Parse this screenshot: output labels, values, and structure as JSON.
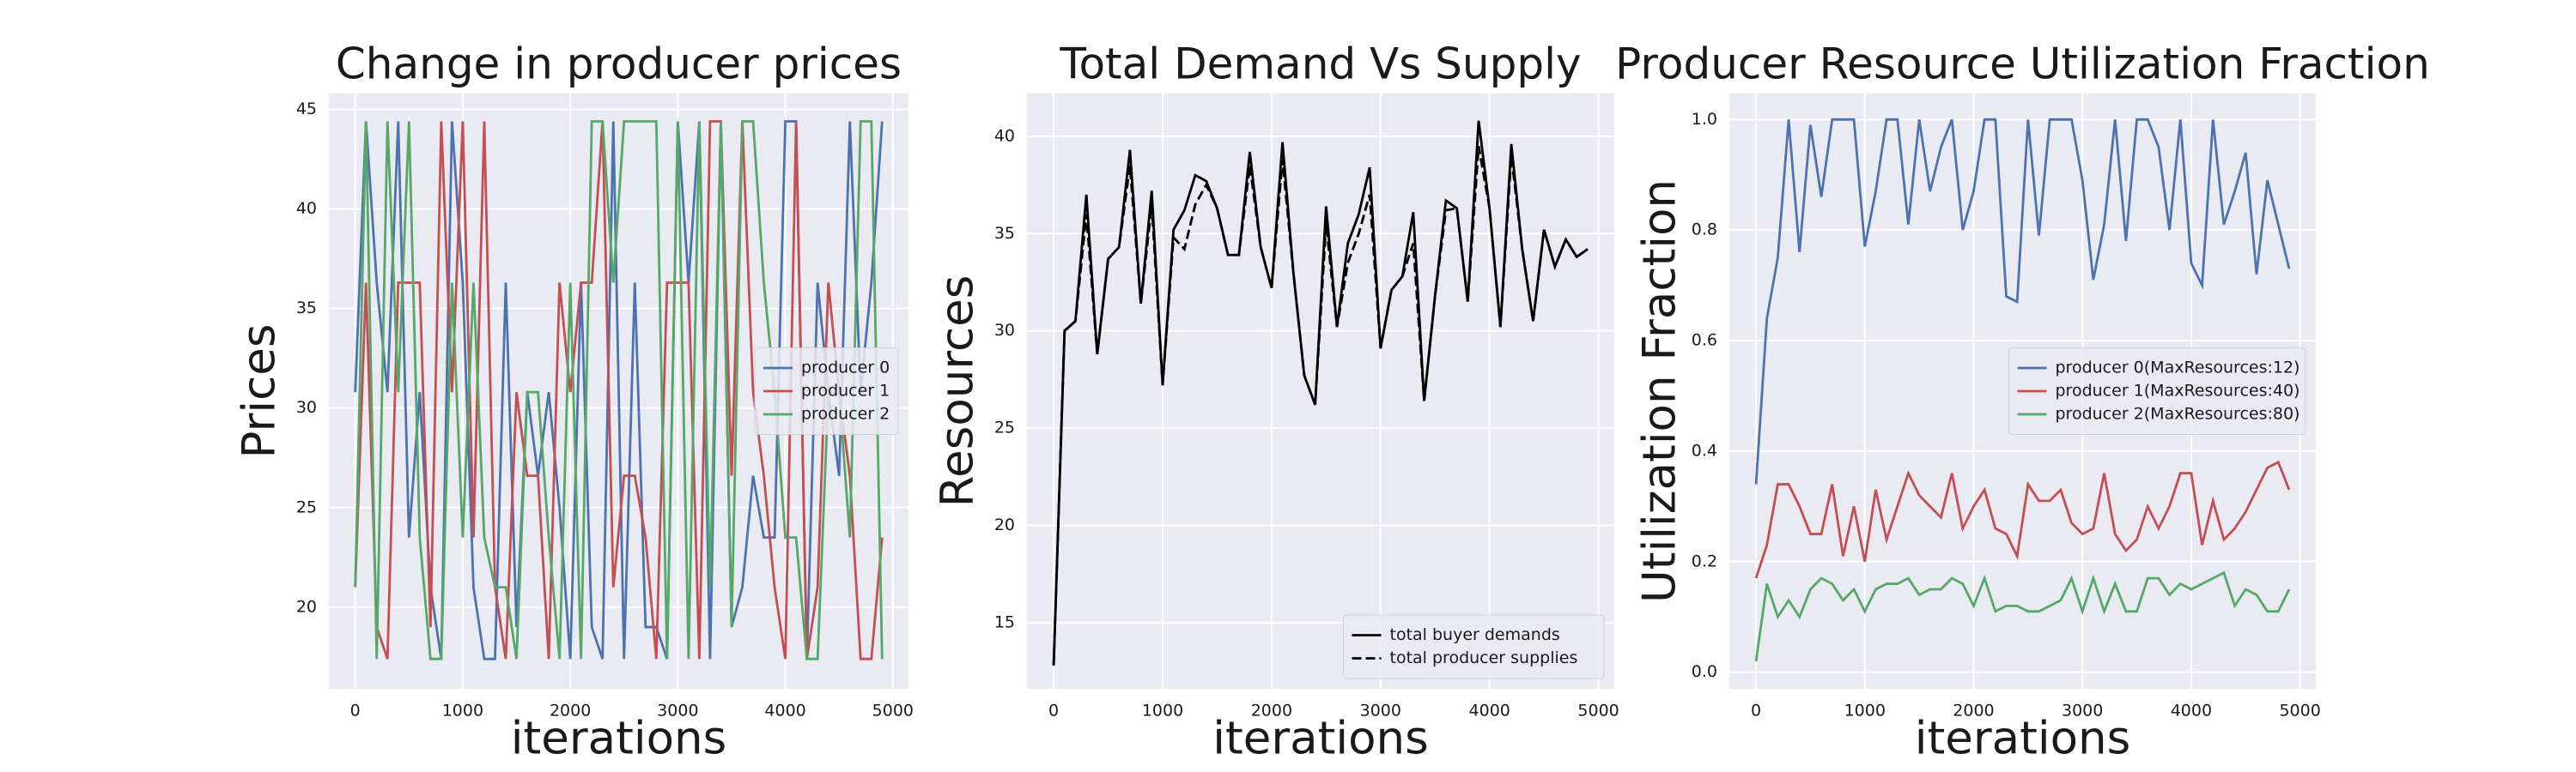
{
  "chart_data": [
    {
      "type": "line",
      "title": "Change in producer prices",
      "xlabel": "iterations",
      "ylabel": "Prices",
      "x": [
        0,
        100,
        200,
        300,
        400,
        500,
        600,
        700,
        800,
        900,
        1000,
        1100,
        1200,
        1300,
        1400,
        1500,
        1600,
        1700,
        1800,
        1900,
        2000,
        2100,
        2200,
        2300,
        2400,
        2500,
        2600,
        2700,
        2800,
        2900,
        3000,
        3100,
        3200,
        3300,
        3400,
        3500,
        3600,
        3700,
        3800,
        3900,
        4000,
        4100,
        4200,
        4300,
        4400,
        4500,
        4600,
        4700,
        4800,
        4900
      ],
      "xlim": [
        -245,
        5145
      ],
      "ylim": [
        15.9,
        45.8
      ],
      "xticks": [
        0,
        1000,
        2000,
        3000,
        4000,
        5000
      ],
      "yticks": [
        20,
        25,
        30,
        35,
        40,
        45
      ],
      "grid": true,
      "legend": "center right",
      "series": [
        {
          "name": "producer 0",
          "color": "#4c72b0",
          "values": [
            30.8,
            44.4,
            36.3,
            30.8,
            44.4,
            23.5,
            30.8,
            21,
            17.4,
            44.4,
            36.3,
            21,
            17.4,
            17.4,
            36.3,
            19,
            30.8,
            26.6,
            30.8,
            25,
            17.4,
            36.3,
            19,
            17.4,
            44.4,
            17.4,
            36.3,
            19,
            19,
            17.4,
            44.4,
            36.3,
            44.4,
            17.4,
            44.4,
            19,
            21,
            26.6,
            23.5,
            23.5,
            44.4,
            44.4,
            17.4,
            36.3,
            30.8,
            26.6,
            44.4,
            30.8,
            36.3,
            44.4
          ]
        },
        {
          "name": "producer 1",
          "color": "#c44e52",
          "values": [
            21,
            36.3,
            19,
            17.4,
            36.3,
            36.3,
            36.3,
            19,
            44.4,
            30.8,
            44.4,
            23.5,
            44.4,
            21,
            17.4,
            30.8,
            26.6,
            26.6,
            17.4,
            36.3,
            30.8,
            36.3,
            36.3,
            44.4,
            21,
            26.6,
            26.6,
            23.5,
            17.4,
            36.3,
            36.3,
            36.3,
            17.4,
            44.4,
            44.4,
            26.6,
            44.4,
            30.8,
            26.6,
            21,
            17.4,
            44.4,
            17.4,
            21,
            36.3,
            30.8,
            26.6,
            17.4,
            17.4,
            23.5
          ]
        },
        {
          "name": "producer 2",
          "color": "#55a868",
          "values": [
            21,
            44.4,
            17.4,
            44.4,
            30.8,
            44.4,
            23.5,
            17.4,
            17.4,
            36.3,
            23.5,
            36.3,
            23.5,
            21,
            21,
            17.4,
            30.8,
            30.8,
            23.5,
            17.4,
            36.3,
            17.4,
            44.4,
            44.4,
            36.3,
            44.4,
            44.4,
            44.4,
            44.4,
            17.4,
            44.4,
            17.4,
            44.4,
            21,
            44.4,
            19,
            44.4,
            44.4,
            36.3,
            30.8,
            23.5,
            23.5,
            17.4,
            17.4,
            30.8,
            30.8,
            23.5,
            44.4,
            44.4,
            17.4
          ]
        }
      ]
    },
    {
      "type": "line",
      "title": "Total Demand Vs Supply",
      "xlabel": "iterations",
      "ylabel": "Resources",
      "x": [
        0,
        100,
        200,
        300,
        400,
        500,
        600,
        700,
        800,
        900,
        1000,
        1100,
        1200,
        1300,
        1400,
        1500,
        1600,
        1700,
        1800,
        1900,
        2000,
        2100,
        2200,
        2300,
        2400,
        2500,
        2600,
        2700,
        2800,
        2900,
        3000,
        3100,
        3200,
        3300,
        3400,
        3500,
        3600,
        3700,
        3800,
        3900,
        4000,
        4100,
        4200,
        4300,
        4400,
        4500,
        4600,
        4700,
        4800,
        4900
      ],
      "xlim": [
        -245,
        5145
      ],
      "ylim": [
        11.6,
        42.2
      ],
      "xticks": [
        0,
        1000,
        2000,
        3000,
        4000,
        5000
      ],
      "yticks": [
        15,
        20,
        25,
        30,
        35,
        40
      ],
      "grid": true,
      "legend": "lower right",
      "series": [
        {
          "name": "total buyer demands",
          "color": "#000000",
          "linestyle": "solid",
          "values": [
            12.8,
            30,
            30.5,
            37,
            28.8,
            33.7,
            34.3,
            39.3,
            31.4,
            37.2,
            27.2,
            35.2,
            36.2,
            38,
            37.7,
            36.3,
            33.9,
            33.9,
            39.2,
            34.3,
            32.2,
            39.7,
            33,
            27.7,
            26.2,
            36.4,
            30.2,
            34.5,
            36,
            38.4,
            29.1,
            32.1,
            32.8,
            36.1,
            26.4,
            31.8,
            36.7,
            36.3,
            31.5,
            40.8,
            36.3,
            30.2,
            39.6,
            34.2,
            30.5,
            35.2,
            33.3,
            34.7,
            33.8,
            34.2
          ]
        },
        {
          "name": "total producer supplies",
          "color": "#000000",
          "linestyle": "dashed",
          "values": [
            12.8,
            30,
            30.5,
            36,
            28.8,
            33.7,
            34.3,
            38.5,
            31.4,
            36.5,
            27.2,
            34.8,
            34.2,
            36.5,
            37.5,
            36.3,
            33.9,
            33.9,
            38.5,
            34.3,
            32.2,
            38.8,
            33,
            27.7,
            26.2,
            35.5,
            30.2,
            33.5,
            35,
            37,
            29.1,
            32.1,
            32.8,
            34.5,
            26.4,
            31.8,
            36.2,
            36.3,
            31.5,
            39.5,
            36.3,
            30.2,
            39,
            34.2,
            30.5,
            35.2,
            33.3,
            34.7,
            33.8,
            34.2
          ]
        }
      ]
    },
    {
      "type": "line",
      "title": "Producer Resource Utilization Fraction",
      "xlabel": "iterations",
      "ylabel": "Utilization Fraction",
      "x": [
        0,
        100,
        200,
        300,
        400,
        500,
        600,
        700,
        800,
        900,
        1000,
        1100,
        1200,
        1300,
        1400,
        1500,
        1600,
        1700,
        1800,
        1900,
        2000,
        2100,
        2200,
        2300,
        2400,
        2500,
        2600,
        2700,
        2800,
        2900,
        3000,
        3100,
        3200,
        3300,
        3400,
        3500,
        3600,
        3700,
        3800,
        3900,
        4000,
        4100,
        4200,
        4300,
        4400,
        4500,
        4600,
        4700,
        4800,
        4900
      ],
      "xlim": [
        -245,
        5145
      ],
      "ylim": [
        -0.03,
        1.047
      ],
      "xticks": [
        0,
        1000,
        2000,
        3000,
        4000,
        5000
      ],
      "yticks": [
        {
          "value": 0,
          "label": "0.0"
        },
        0.2,
        0.4,
        0.6,
        0.8,
        {
          "value": 1,
          "label": "1.0"
        }
      ],
      "grid": true,
      "legend": "center right",
      "series": [
        {
          "name": "producer 0(MaxResources:12)",
          "color": "#4c72b0",
          "values": [
            0.34,
            0.64,
            0.75,
            1.0,
            0.76,
            0.99,
            0.86,
            1.0,
            1.0,
            1.0,
            0.77,
            0.87,
            1.0,
            1.0,
            0.81,
            1.0,
            0.87,
            0.95,
            1.0,
            0.8,
            0.87,
            1.0,
            1.0,
            0.68,
            0.67,
            1.0,
            0.79,
            1.0,
            1.0,
            1.0,
            0.89,
            0.71,
            0.81,
            1.0,
            0.78,
            1.0,
            1.0,
            0.95,
            0.8,
            1.0,
            0.74,
            0.7,
            1.0,
            0.81,
            0.87,
            0.94,
            0.72,
            0.89,
            0.81,
            0.73
          ]
        },
        {
          "name": "producer 1(MaxResources:40)",
          "color": "#c44e52",
          "values": [
            0.17,
            0.23,
            0.34,
            0.34,
            0.3,
            0.25,
            0.25,
            0.34,
            0.21,
            0.3,
            0.2,
            0.33,
            0.24,
            0.3,
            0.36,
            0.32,
            0.3,
            0.28,
            0.36,
            0.26,
            0.3,
            0.33,
            0.26,
            0.25,
            0.21,
            0.34,
            0.31,
            0.31,
            0.33,
            0.27,
            0.25,
            0.26,
            0.36,
            0.25,
            0.22,
            0.24,
            0.3,
            0.26,
            0.3,
            0.36,
            0.36,
            0.23,
            0.31,
            0.24,
            0.26,
            0.29,
            0.33,
            0.37,
            0.38,
            0.33
          ]
        },
        {
          "name": "producer 2(MaxResources:80)",
          "color": "#55a868",
          "values": [
            0.02,
            0.16,
            0.1,
            0.13,
            0.1,
            0.15,
            0.17,
            0.16,
            0.13,
            0.15,
            0.11,
            0.15,
            0.16,
            0.16,
            0.17,
            0.14,
            0.15,
            0.15,
            0.17,
            0.16,
            0.12,
            0.17,
            0.11,
            0.12,
            0.12,
            0.11,
            0.11,
            0.12,
            0.13,
            0.17,
            0.11,
            0.17,
            0.11,
            0.16,
            0.11,
            0.11,
            0.17,
            0.17,
            0.14,
            0.16,
            0.15,
            0.16,
            0.17,
            0.18,
            0.12,
            0.15,
            0.14,
            0.11,
            0.11,
            0.15
          ]
        }
      ]
    }
  ]
}
